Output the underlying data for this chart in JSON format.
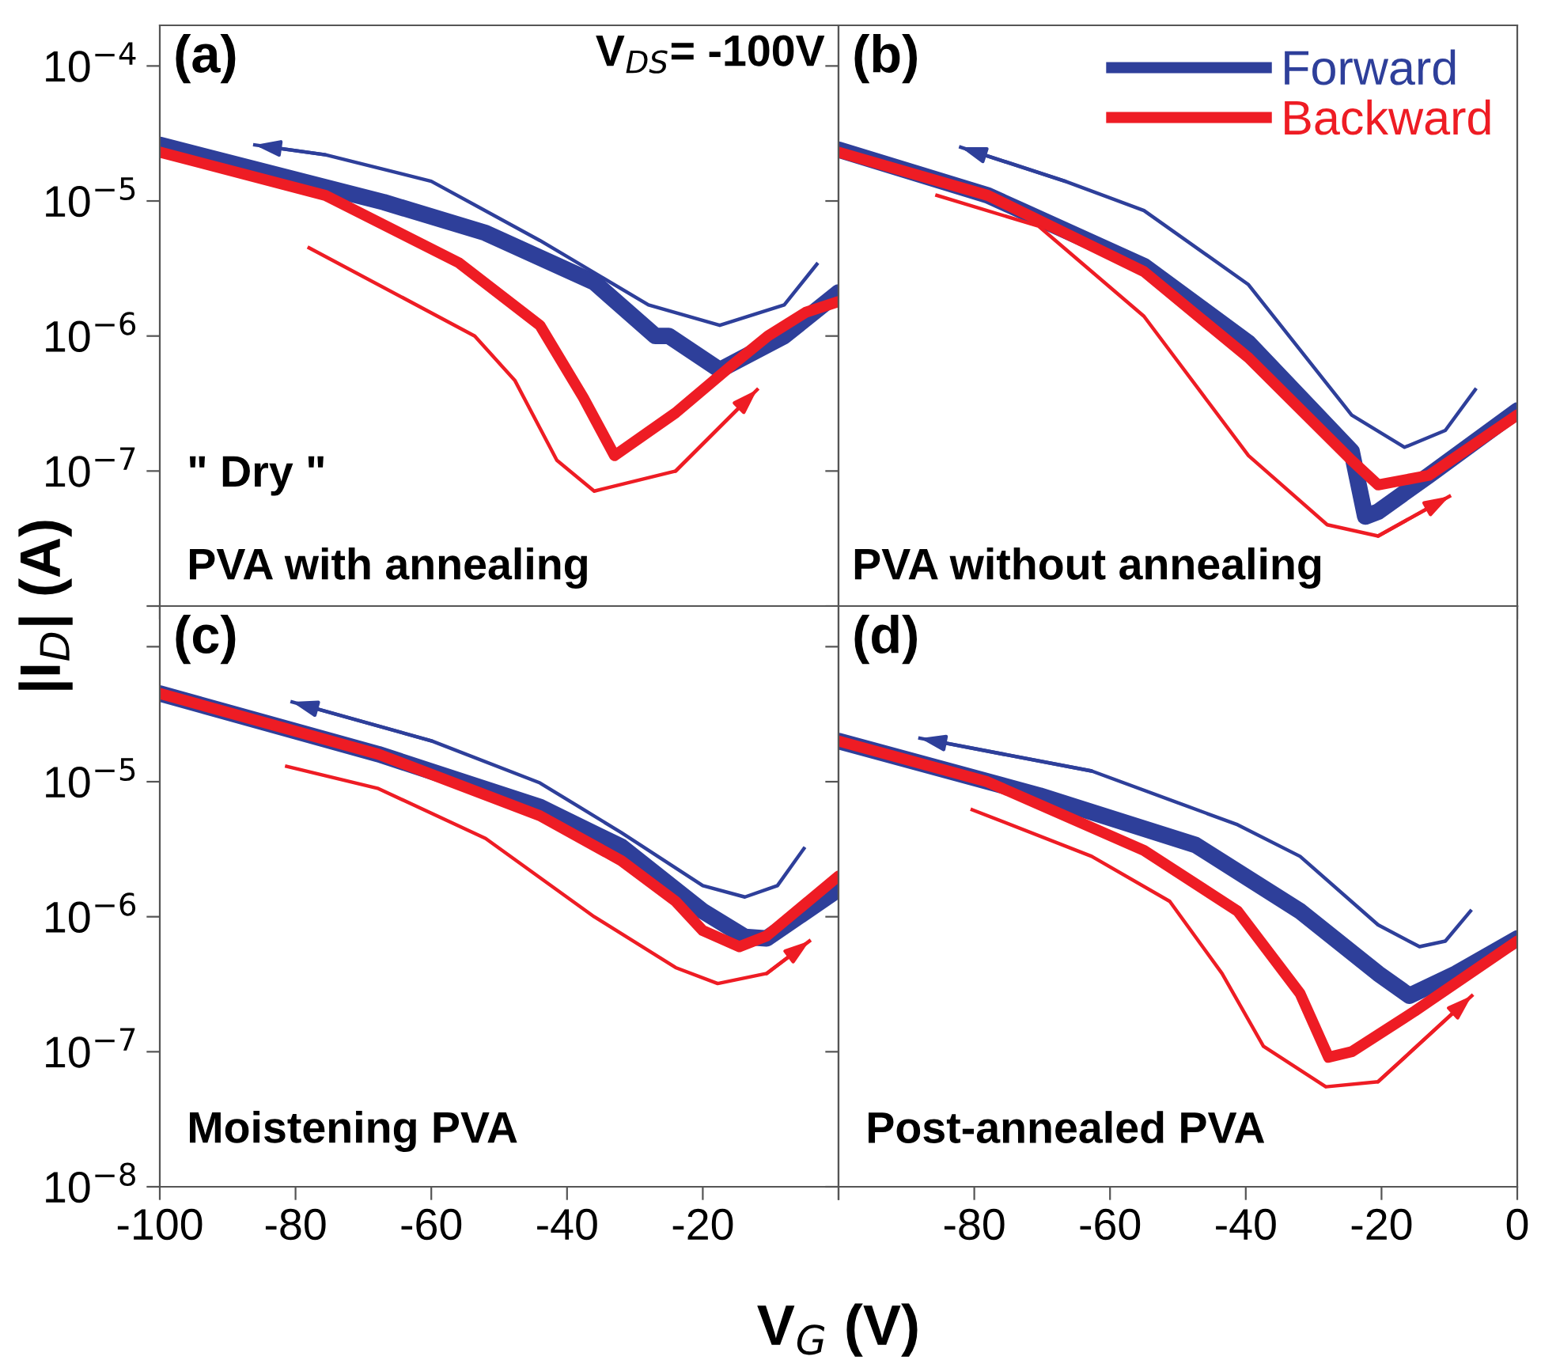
{
  "chart_data": [
    {
      "type": "line",
      "annotations": [
        "(a)",
        "V$_{DS}$= -100V",
        "\" Dry \"",
        "PVA with annealing"
      ],
      "ylabel": "|I$_{D}$| (A)",
      "log": "y",
      "grid": false,
      "legend": false,
      "marker": "none",
      "line_style": "solid",
      "tick_labels": "y",
      "xlim": [
        -100,
        0
      ],
      "xticks": [
        -100,
        -80,
        -60,
        -40,
        -20,
        0
      ],
      "ylim": [
        1e-08,
        0.0002
      ],
      "yticks": [
        {
          "value": 0.0001,
          "label": "10$^{−4}$"
        },
        {
          "value": 1e-05,
          "label": "10$^{−5}$"
        },
        {
          "value": 1e-06,
          "label": "10$^{−6}$"
        },
        {
          "value": 1e-07,
          "label": "10$^{−7}$"
        },
        {
          "value": 1e-08,
          "label": null
        }
      ],
      "series": [
        {
          "color": "#2e3f9a",
          "x": [
            -100,
            -67,
            -52,
            -36,
            -27,
            -25,
            -17.5,
            -8,
            0
          ],
          "values": [
            2.6e-05,
            9.8e-06,
            5.8e-06,
            2.5e-06,
            1e-06,
            1e-06,
            5.6e-07,
            1e-06,
            2.1e-06
          ]
        },
        {
          "color": "#ee1c24",
          "x": [
            -100,
            -75.6,
            -56,
            -44,
            -37.6,
            -33,
            -24,
            -16,
            -10.4,
            -4.8,
            0
          ],
          "values": [
            2.3e-05,
            1.1e-05,
            3.5e-06,
            1.2e-06,
            3.5e-07,
            1.3e-07,
            2.7e-07,
            5.9e-07,
            1e-06,
            1.5e-06,
            1.8e-06
          ]
        },
        {
          "color": "#2e3f9a",
          "x": [
            -3.2,
            -8,
            -17.5,
            -28,
            -44,
            -60,
            -75.6,
            -86
          ],
          "values": [
            3.4e-06,
            1.7e-06,
            1.2e-06,
            1.7e-06,
            5.1e-06,
            1.4e-05,
            2.2e-05,
            2.6e-05
          ]
        },
        {
          "color": "#ee1c24",
          "x": [
            -78,
            -53.6,
            -47.7,
            -41.5,
            -36,
            -24,
            -12
          ],
          "values": [
            4.5e-06,
            1e-06,
            4.7e-07,
            1.2e-07,
            7.1e-08,
            1e-07,
            4e-07
          ]
        }
      ]
    },
    {
      "type": "line",
      "annotations": [
        "(b)",
        "PVA without annealing"
      ],
      "log": "y",
      "grid": false,
      "legend": "top right",
      "marker": "none",
      "line_style": "solid",
      "tick_labels": false,
      "xlim": [
        -100,
        0
      ],
      "xticks": [
        -100,
        -80,
        -60,
        -40,
        -20,
        0
      ],
      "ylim": [
        1e-08,
        0.0002
      ],
      "yticks": [
        0.0001,
        1e-05,
        1e-06,
        1e-07,
        1e-08
      ],
      "series": [
        {
          "name": "Forward",
          "color": "#2e3f9a",
          "x": [
            -100,
            -78,
            -55,
            -39.6,
            -24.4,
            -22.4,
            -20.5,
            -13,
            0
          ],
          "values": [
            2.4e-05,
            1.1e-05,
            3.3e-06,
            8.9e-07,
            1.4e-07,
            4.6e-08,
            5e-08,
            9.3e-08,
            2.8e-07
          ]
        },
        {
          "name": "Backward",
          "color": "#ee1c24",
          "x": [
            -100,
            -78,
            -55,
            -39.6,
            -24.4,
            -20.5,
            -13,
            0
          ],
          "values": [
            2.3e-05,
            1.1e-05,
            3e-06,
            6.9e-07,
            1.2e-07,
            7.9e-08,
            9.3e-08,
            2.6e-07
          ]
        },
        {
          "color": "#2e3f9a",
          "x": [
            -6.2,
            -10.6,
            -16.6,
            -24.4,
            -39.6,
            -55,
            -66.6,
            -82
          ],
          "values": [
            4e-07,
            2e-07,
            1.5e-07,
            2.6e-07,
            2.4e-06,
            8.5e-06,
            1.4e-05,
            2.5e-05
          ]
        },
        {
          "color": "#ee1c24",
          "x": [
            -85.5,
            -70.5,
            -55,
            -39.6,
            -28,
            -20.5,
            -10
          ],
          "values": [
            1.1e-05,
            6.5e-06,
            1.4e-06,
            1.3e-07,
            4e-08,
            3.3e-08,
            6.5e-08
          ]
        }
      ]
    },
    {
      "type": "line",
      "annotations": [
        "(c)",
        "Moistening PVA"
      ],
      "xlabel": "V$_{G}$ (V)",
      "log": "y",
      "grid": false,
      "legend": false,
      "marker": "none",
      "line_style": "solid",
      "xlim": [
        -100,
        0
      ],
      "xticks": [
        -100,
        -80,
        -60,
        -40,
        -20,
        {
          "value": 0,
          "label": null
        }
      ],
      "ylim": [
        1e-08,
        0.0002
      ],
      "yticks": [
        {
          "value": 0.0001,
          "label": null
        },
        {
          "value": 1e-05,
          "label": "10$^{−5}$"
        },
        {
          "value": 1e-06,
          "label": "10$^{−6}$"
        },
        {
          "value": 1e-07,
          "label": "10$^{−7}$"
        },
        {
          "value": 1e-08,
          "label": "10$^{−8}$"
        }
      ],
      "series": [
        {
          "color": "#2e3f9a",
          "x": [
            -100,
            -67.8,
            -44,
            -32,
            -20,
            -13.8,
            -10.6,
            0
          ],
          "values": [
            4.5e-05,
            1.6e-05,
            6.5e-06,
            3.3e-06,
            1.1e-06,
            7.1e-07,
            6.9e-07,
            1.6e-06
          ]
        },
        {
          "color": "#ee1c24",
          "x": [
            -100,
            -67.8,
            -44,
            -32,
            -24,
            -20,
            -14.6,
            -10.6,
            0
          ],
          "values": [
            4.5e-05,
            1.6e-05,
            5.6e-06,
            2.6e-06,
            1.3e-06,
            7.9e-07,
            6e-07,
            7.2e-07,
            2e-06
          ]
        },
        {
          "color": "#2e3f9a",
          "x": [
            -5.1,
            -9,
            -13.8,
            -20,
            -32,
            -44,
            -59.9,
            -80.5
          ],
          "values": [
            3.2e-06,
            1.7e-06,
            1.4e-06,
            1.7e-06,
            4.2e-06,
            9.8e-06,
            2e-05,
            3.9e-05
          ]
        },
        {
          "color": "#ee1c24",
          "x": [
            -81.3,
            -67.8,
            -52,
            -36,
            -24,
            -17.8,
            -10.6,
            -4.3
          ],
          "values": [
            1.3e-05,
            8.9e-06,
            3.8e-06,
            1e-06,
            4.2e-07,
            3.2e-07,
            3.8e-07,
            6.6e-07
          ]
        }
      ]
    },
    {
      "type": "line",
      "annotations": [
        "(d)",
        "Post-annealed PVA"
      ],
      "log": "y",
      "grid": false,
      "legend": false,
      "marker": "none",
      "line_style": "solid",
      "tick_labels": "x",
      "xlim": [
        -100,
        0
      ],
      "xticks": [
        {
          "value": -100,
          "label": null
        },
        -80,
        -60,
        -40,
        -20,
        0
      ],
      "ylim": [
        1e-08,
        0.0002
      ],
      "yticks": [
        0.0001,
        1e-05,
        1e-06,
        1e-07,
        1e-08
      ],
      "series": [
        {
          "color": "#2e3f9a",
          "x": [
            -100,
            -70.4,
            -47.4,
            -32,
            -20.5,
            -15.9,
            -9,
            0
          ],
          "values": [
            2e-05,
            7.9e-06,
            3.4e-06,
            1.1e-06,
            3.8e-07,
            2.6e-07,
            3.8e-07,
            6.9e-07
          ]
        },
        {
          "color": "#ee1c24",
          "x": [
            -100,
            -78.1,
            -55,
            -41.2,
            -32,
            -27.8,
            -24.4,
            -15.1,
            0
          ],
          "values": [
            2e-05,
            1e-05,
            3.1e-06,
            1.1e-06,
            2.7e-07,
            9.1e-08,
            1e-07,
            2e-07,
            6.6e-07
          ]
        },
        {
          "color": "#2e3f9a",
          "x": [
            -6.9,
            -10.6,
            -14.4,
            -20.5,
            -32,
            -41.2,
            -62.7,
            -88
          ],
          "values": [
            1.1e-06,
            6.6e-07,
            6e-07,
            8.7e-07,
            2.8e-06,
            4.8e-06,
            1.2e-05,
            2.1e-05
          ]
        },
        {
          "color": "#ee1c24",
          "x": [
            -80.3,
            -62.7,
            -51.2,
            -43.5,
            -37.4,
            -28.2,
            -20.5,
            -6.7
          ],
          "values": [
            6.2e-06,
            2.8e-06,
            1.3e-06,
            3.8e-07,
            1.1e-07,
            5.5e-08,
            6e-08,
            2.6e-07
          ]
        }
      ]
    }
  ]
}
